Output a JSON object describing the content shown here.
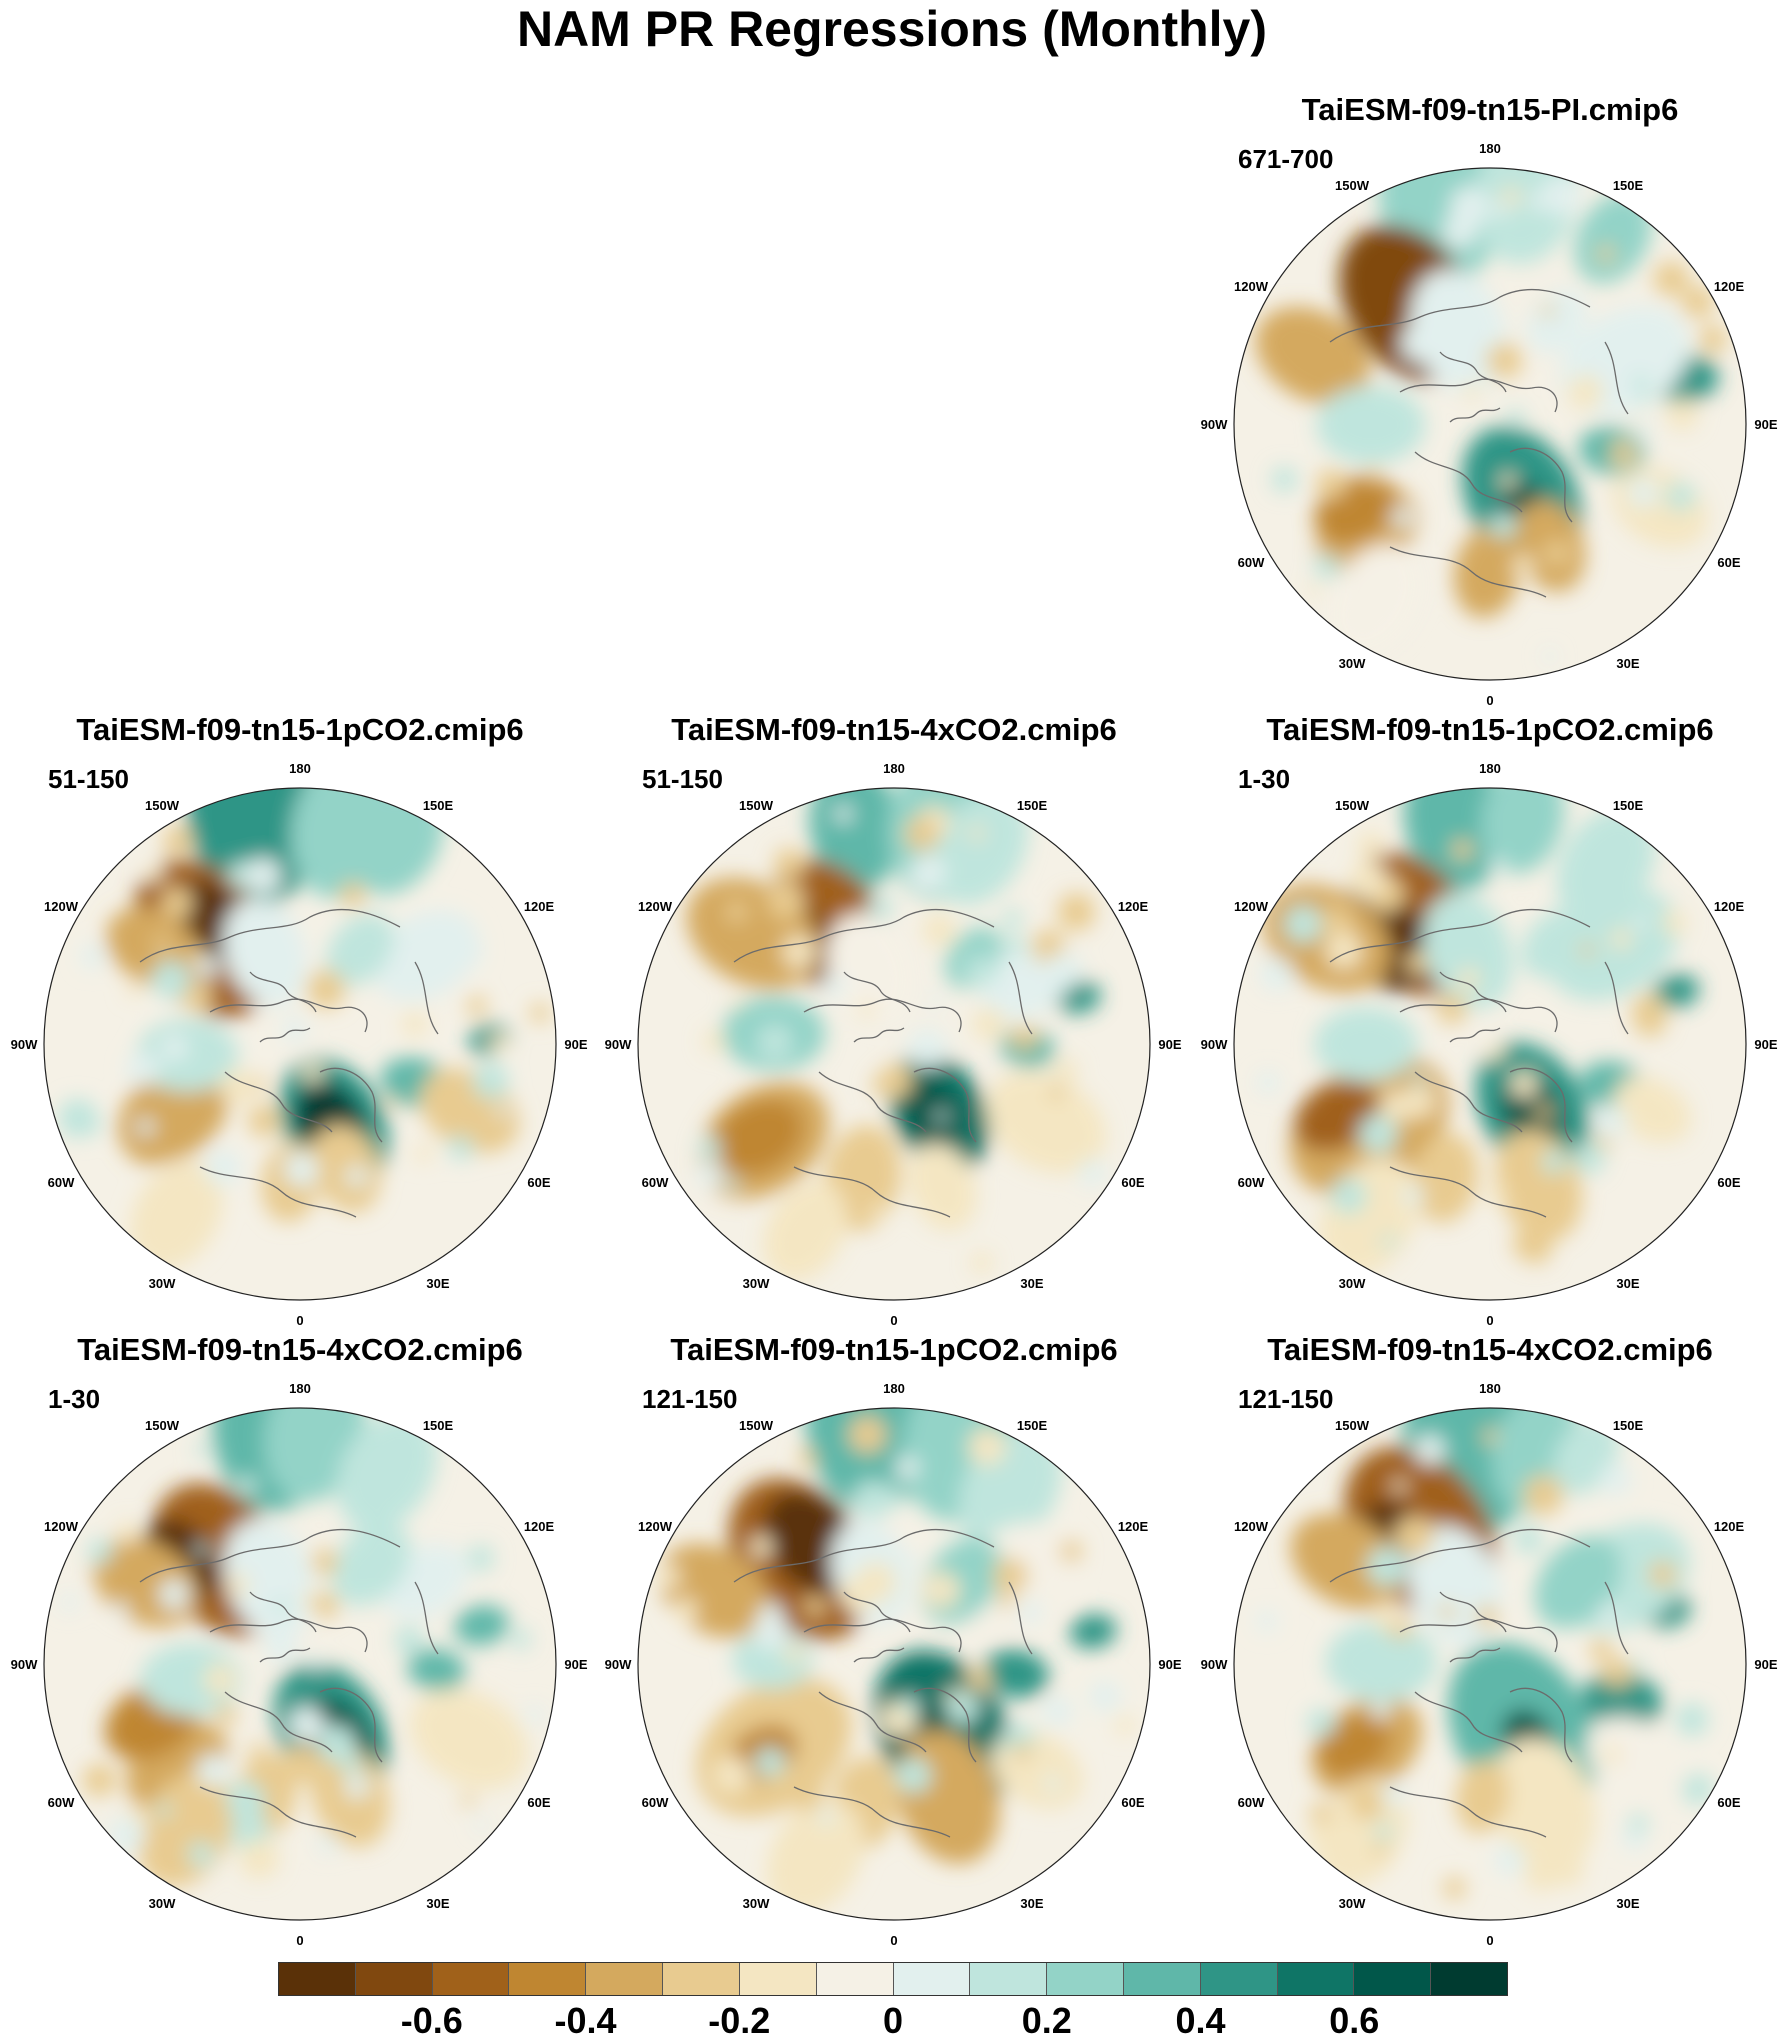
{
  "title": "NAM PR Regressions (Monthly)",
  "chart_data": {
    "type": "heatmap",
    "projection": "north polar stereographic",
    "variable": "PR regression on NAM",
    "longitude_labels": [
      "180",
      "150E",
      "120E",
      "90E",
      "60E",
      "30E",
      "0",
      "30W",
      "60W",
      "90W",
      "120W",
      "150W"
    ],
    "panels": [
      {
        "model": "TaiESM-f09-tn15-PI.cmip6",
        "period": "671-700"
      },
      {
        "model": "TaiESM-f09-tn15-1pCO2.cmip6",
        "period": "51-150"
      },
      {
        "model": "TaiESM-f09-tn15-4xCO2.cmip6",
        "period": "51-150"
      },
      {
        "model": "TaiESM-f09-tn15-1pCO2.cmip6",
        "period": "1-30"
      },
      {
        "model": "TaiESM-f09-tn15-4xCO2.cmip6",
        "period": "1-30"
      },
      {
        "model": "TaiESM-f09-tn15-1pCO2.cmip6",
        "period": "121-150"
      },
      {
        "model": "TaiESM-f09-tn15-4xCO2.cmip6",
        "period": "121-150"
      }
    ],
    "colorbar": {
      "levels": [
        -0.7,
        -0.6,
        -0.5,
        -0.4,
        -0.3,
        -0.2,
        -0.1,
        0,
        0.1,
        0.2,
        0.3,
        0.4,
        0.5,
        0.6,
        0.7
      ],
      "tick_labels": [
        "-0.6",
        "-0.4",
        "-0.2",
        "0",
        "0.2",
        "0.4",
        "0.6"
      ],
      "tick_values": [
        -0.6,
        -0.4,
        -0.2,
        0,
        0.2,
        0.4,
        0.6
      ],
      "colors": [
        "#5a3108",
        "#80480f",
        "#a0611a",
        "#bf8631",
        "#d4a95e",
        "#e8cb90",
        "#f4e6c2",
        "#f5f1e6",
        "#e2f0ee",
        "#bfe5dd",
        "#93d3c7",
        "#5fb7a9",
        "#2f9586",
        "#0f7566",
        "#01574a",
        "#003b30"
      ]
    }
  }
}
